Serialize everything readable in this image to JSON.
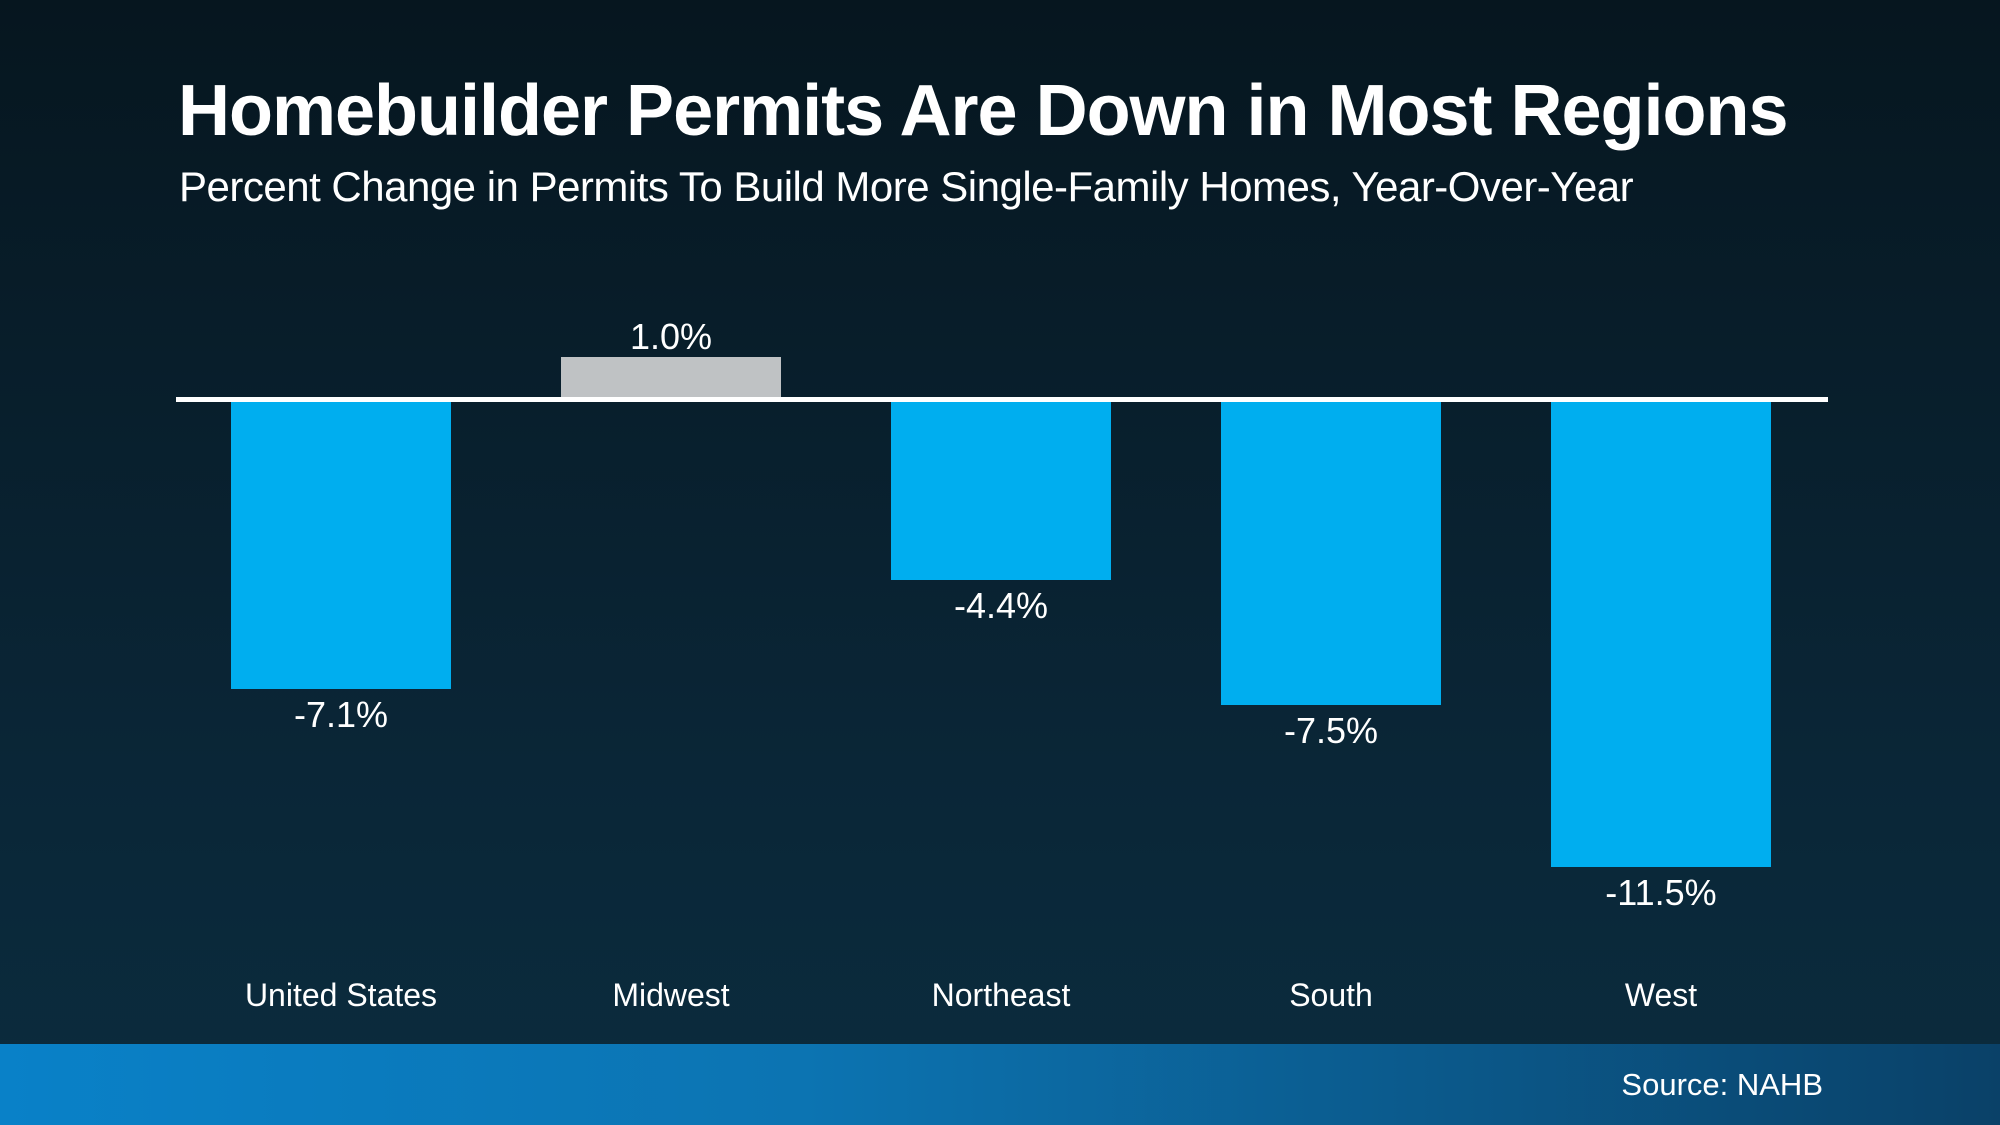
{
  "header": {
    "title": "Homebuilder Permits Are Down in Most Regions",
    "subtitle": "Percent Change in Permits To Build More Single-Family Homes, Year-Over-Year"
  },
  "chart_data": {
    "type": "bar",
    "title": "Homebuilder Permits Are Down in Most Regions",
    "subtitle": "Percent Change in Permits To Build More Single-Family Homes, Year-Over-Year",
    "categories": [
      "United States",
      "Midwest",
      "Northeast",
      "South",
      "West"
    ],
    "values": [
      -7.1,
      1.0,
      -4.4,
      -7.5,
      -11.5
    ],
    "data_labels": [
      "-7.1%",
      "1.0%",
      "-4.4%",
      "-7.5%",
      "-11.5%"
    ],
    "bar_colors": [
      "#00AEEF",
      "#BFC2C4",
      "#00AEEF",
      "#00AEEF",
      "#00AEEF"
    ],
    "xlabel": "",
    "ylabel": "",
    "ylim": [
      -12.5,
      2
    ],
    "baseline": 0,
    "grid": false,
    "legend": "none",
    "orientation": "vertical"
  },
  "footer": {
    "source_label": "Source: NAHB"
  },
  "colors": {
    "background_top": "#06161F",
    "background_bottom": "#0B2C3E",
    "bar_negative": "#00AEEF",
    "bar_positive": "#BFC2C4",
    "zero_line": "#FFFFFF",
    "text": "#FFFFFF",
    "footer_gradient_left": "#0981C8",
    "footer_gradient_right": "#0A4168"
  }
}
